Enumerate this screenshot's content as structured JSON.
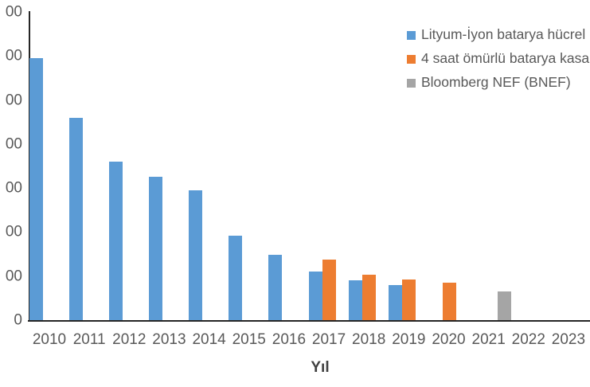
{
  "chart_data": {
    "type": "bar",
    "title": "",
    "xlabel": "Yıl",
    "ylabel": "",
    "ylim": [
      0,
      1400
    ],
    "ytick_step": 200,
    "ytick_labels_visible": [
      "00",
      "00",
      "00",
      "00",
      "00",
      "00",
      "00",
      "0"
    ],
    "grid": false,
    "legend_position": "top-right",
    "categories": [
      "2010",
      "2011",
      "2012",
      "2013",
      "2014",
      "2015",
      "2016",
      "2017",
      "2018",
      "2019",
      "2020",
      "2021",
      "2022",
      "2023"
    ],
    "series": [
      {
        "name": "Lityum-İyon batarya hücrel",
        "color": "#5B9BD5",
        "values": [
          1190,
          920,
          720,
          650,
          590,
          385,
          295,
          220,
          180,
          160,
          null,
          null,
          null,
          null
        ]
      },
      {
        "name": "4 saat ömürlü batarya kasa",
        "color": "#ED7D31",
        "values": [
          null,
          null,
          null,
          null,
          null,
          null,
          null,
          275,
          205,
          185,
          170,
          null,
          null,
          null
        ]
      },
      {
        "name": "Bloomberg NEF (BNEF)",
        "color": "#A5A5A5",
        "values": [
          null,
          null,
          null,
          null,
          null,
          null,
          null,
          null,
          null,
          null,
          null,
          130,
          null,
          null
        ]
      }
    ]
  },
  "colors": {
    "axis_line": "#262626",
    "tick_label": "#595959",
    "axis_title": "#404040"
  }
}
